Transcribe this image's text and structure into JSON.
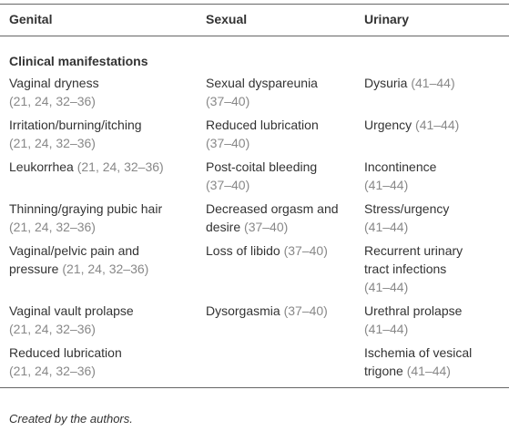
{
  "table": {
    "headers": [
      "Genital",
      "Sexual",
      "Urinary"
    ],
    "section": "Clinical manifestations",
    "rows": [
      [
        {
          "text": "Vaginal dryness",
          "refs": "(21, 24, 32–36)"
        },
        {
          "text": "Sexual dyspareunia",
          "refs": "(37–40)"
        },
        {
          "text": "Dysuria",
          "refs": "(41–44)"
        }
      ],
      [
        {
          "text": "Irritation/burning/itching",
          "refs": "(21, 24, 32–36)"
        },
        {
          "text": "Reduced lubrication",
          "refs": "(37–40)"
        },
        {
          "text": "Urgency",
          "refs": "(41–44)"
        }
      ],
      [
        {
          "text": "Leukorrhea",
          "refs": "(21, 24, 32–36)"
        },
        {
          "text": "Post-coital bleeding",
          "refs": "(37–40)"
        },
        {
          "text": "Incontinence",
          "refs": "(41–44)"
        }
      ],
      [
        {
          "text": "Thinning/graying pubic hair",
          "refs": "(21, 24, 32–36)"
        },
        {
          "text": "Decreased orgasm and desire",
          "refs": "(37–40)"
        },
        {
          "text": "Stress/urgency",
          "refs": "(41–44)"
        }
      ],
      [
        {
          "text": "Vaginal/pelvic pain and pressure",
          "refs": "(21, 24, 32–36)"
        },
        {
          "text": "Loss of libido",
          "refs": "(37–40)"
        },
        {
          "text": "Recurrent urinary tract infections",
          "refs": "(41–44)"
        }
      ],
      [
        {
          "text": "Vaginal vault prolapse",
          "refs": "(21, 24, 32–36)"
        },
        {
          "text": "Dysorgasmia",
          "refs": "(37–40)"
        },
        {
          "text": "Urethral prolapse",
          "refs": "(41–44)"
        }
      ],
      [
        {
          "text": "Reduced lubrication",
          "refs": "(21, 24, 32–36)"
        },
        null,
        {
          "text": "Ischemia of vesical trigone",
          "refs": "(41–44)"
        }
      ]
    ]
  },
  "footer": "Created by the authors."
}
